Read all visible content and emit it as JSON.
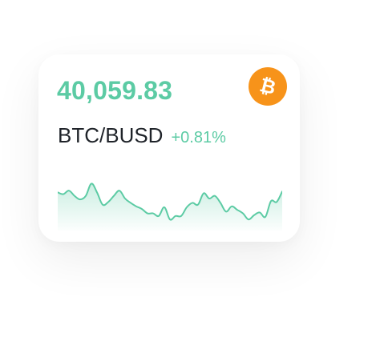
{
  "ticker": {
    "price": "40,059.83",
    "pair": "BTC/BUSD",
    "change": "+0.81%",
    "coin_icon": "bitcoin-icon"
  },
  "colors": {
    "positive": "#5ccba4",
    "coin_bg": "#f7931a",
    "coin_glyph": "#ffffff",
    "pair_text": "#1f2329"
  },
  "sparkline": {
    "values": [
      40,
      38,
      42,
      36,
      32,
      36,
      50,
      40,
      26,
      29,
      36,
      42,
      33,
      28,
      24,
      21,
      16,
      16,
      13,
      23,
      9,
      13,
      13,
      23,
      28,
      26,
      39,
      33,
      36,
      28,
      18,
      24,
      20,
      16,
      9,
      14,
      17,
      12,
      30,
      29,
      41
    ]
  }
}
